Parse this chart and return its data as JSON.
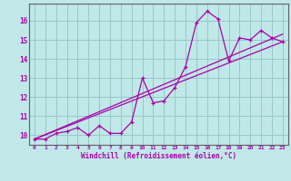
{
  "xlabel": "Windchill (Refroidissement éolien,°C)",
  "bg_color": "#c0e8e8",
  "grid_color": "#96c8c8",
  "line_color": "#aa00aa",
  "x_data": [
    0,
    1,
    2,
    3,
    4,
    5,
    6,
    7,
    8,
    9,
    10,
    11,
    12,
    13,
    14,
    15,
    16,
    17,
    18,
    19,
    20,
    21,
    22,
    23
  ],
  "y_data": [
    9.8,
    9.8,
    10.1,
    10.2,
    10.4,
    10.0,
    10.5,
    10.1,
    10.1,
    10.7,
    13.0,
    11.7,
    11.8,
    12.5,
    13.6,
    15.9,
    16.5,
    16.1,
    13.9,
    15.1,
    15.0,
    15.5,
    15.1,
    14.9
  ],
  "line1_x": [
    0,
    23
  ],
  "line1_y": [
    9.8,
    14.9
  ],
  "line2_x": [
    0,
    23
  ],
  "line2_y": [
    9.8,
    15.3
  ],
  "ylim": [
    9.5,
    16.9
  ],
  "xlim": [
    -0.5,
    23.5
  ],
  "yticks": [
    10,
    11,
    12,
    13,
    14,
    15,
    16
  ],
  "xticks": [
    0,
    1,
    2,
    3,
    4,
    5,
    6,
    7,
    8,
    9,
    10,
    11,
    12,
    13,
    14,
    15,
    16,
    17,
    18,
    19,
    20,
    21,
    22,
    23
  ]
}
